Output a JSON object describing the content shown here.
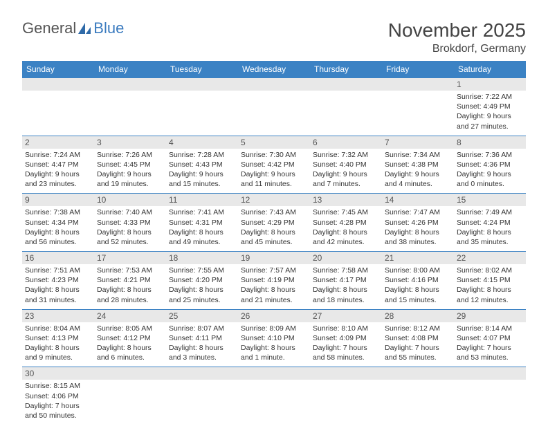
{
  "logo": {
    "part1": "General",
    "part2": "Blue"
  },
  "title": "November 2025",
  "location": "Brokdorf, Germany",
  "colors": {
    "header_bg": "#3b82c4",
    "header_fg": "#ffffff",
    "daynum_bg": "#e8e8e8",
    "week_border": "#3b82c4",
    "text": "#333333",
    "logo_gray": "#555555",
    "logo_blue": "#3b7bbf"
  },
  "weekdays": [
    "Sunday",
    "Monday",
    "Tuesday",
    "Wednesday",
    "Thursday",
    "Friday",
    "Saturday"
  ],
  "weeks": [
    [
      null,
      null,
      null,
      null,
      null,
      null,
      {
        "n": "1",
        "sr": "Sunrise: 7:22 AM",
        "ss": "Sunset: 4:49 PM",
        "d1": "Daylight: 9 hours",
        "d2": "and 27 minutes."
      }
    ],
    [
      {
        "n": "2",
        "sr": "Sunrise: 7:24 AM",
        "ss": "Sunset: 4:47 PM",
        "d1": "Daylight: 9 hours",
        "d2": "and 23 minutes."
      },
      {
        "n": "3",
        "sr": "Sunrise: 7:26 AM",
        "ss": "Sunset: 4:45 PM",
        "d1": "Daylight: 9 hours",
        "d2": "and 19 minutes."
      },
      {
        "n": "4",
        "sr": "Sunrise: 7:28 AM",
        "ss": "Sunset: 4:43 PM",
        "d1": "Daylight: 9 hours",
        "d2": "and 15 minutes."
      },
      {
        "n": "5",
        "sr": "Sunrise: 7:30 AM",
        "ss": "Sunset: 4:42 PM",
        "d1": "Daylight: 9 hours",
        "d2": "and 11 minutes."
      },
      {
        "n": "6",
        "sr": "Sunrise: 7:32 AM",
        "ss": "Sunset: 4:40 PM",
        "d1": "Daylight: 9 hours",
        "d2": "and 7 minutes."
      },
      {
        "n": "7",
        "sr": "Sunrise: 7:34 AM",
        "ss": "Sunset: 4:38 PM",
        "d1": "Daylight: 9 hours",
        "d2": "and 4 minutes."
      },
      {
        "n": "8",
        "sr": "Sunrise: 7:36 AM",
        "ss": "Sunset: 4:36 PM",
        "d1": "Daylight: 9 hours",
        "d2": "and 0 minutes."
      }
    ],
    [
      {
        "n": "9",
        "sr": "Sunrise: 7:38 AM",
        "ss": "Sunset: 4:34 PM",
        "d1": "Daylight: 8 hours",
        "d2": "and 56 minutes."
      },
      {
        "n": "10",
        "sr": "Sunrise: 7:40 AM",
        "ss": "Sunset: 4:33 PM",
        "d1": "Daylight: 8 hours",
        "d2": "and 52 minutes."
      },
      {
        "n": "11",
        "sr": "Sunrise: 7:41 AM",
        "ss": "Sunset: 4:31 PM",
        "d1": "Daylight: 8 hours",
        "d2": "and 49 minutes."
      },
      {
        "n": "12",
        "sr": "Sunrise: 7:43 AM",
        "ss": "Sunset: 4:29 PM",
        "d1": "Daylight: 8 hours",
        "d2": "and 45 minutes."
      },
      {
        "n": "13",
        "sr": "Sunrise: 7:45 AM",
        "ss": "Sunset: 4:28 PM",
        "d1": "Daylight: 8 hours",
        "d2": "and 42 minutes."
      },
      {
        "n": "14",
        "sr": "Sunrise: 7:47 AM",
        "ss": "Sunset: 4:26 PM",
        "d1": "Daylight: 8 hours",
        "d2": "and 38 minutes."
      },
      {
        "n": "15",
        "sr": "Sunrise: 7:49 AM",
        "ss": "Sunset: 4:24 PM",
        "d1": "Daylight: 8 hours",
        "d2": "and 35 minutes."
      }
    ],
    [
      {
        "n": "16",
        "sr": "Sunrise: 7:51 AM",
        "ss": "Sunset: 4:23 PM",
        "d1": "Daylight: 8 hours",
        "d2": "and 31 minutes."
      },
      {
        "n": "17",
        "sr": "Sunrise: 7:53 AM",
        "ss": "Sunset: 4:21 PM",
        "d1": "Daylight: 8 hours",
        "d2": "and 28 minutes."
      },
      {
        "n": "18",
        "sr": "Sunrise: 7:55 AM",
        "ss": "Sunset: 4:20 PM",
        "d1": "Daylight: 8 hours",
        "d2": "and 25 minutes."
      },
      {
        "n": "19",
        "sr": "Sunrise: 7:57 AM",
        "ss": "Sunset: 4:19 PM",
        "d1": "Daylight: 8 hours",
        "d2": "and 21 minutes."
      },
      {
        "n": "20",
        "sr": "Sunrise: 7:58 AM",
        "ss": "Sunset: 4:17 PM",
        "d1": "Daylight: 8 hours",
        "d2": "and 18 minutes."
      },
      {
        "n": "21",
        "sr": "Sunrise: 8:00 AM",
        "ss": "Sunset: 4:16 PM",
        "d1": "Daylight: 8 hours",
        "d2": "and 15 minutes."
      },
      {
        "n": "22",
        "sr": "Sunrise: 8:02 AM",
        "ss": "Sunset: 4:15 PM",
        "d1": "Daylight: 8 hours",
        "d2": "and 12 minutes."
      }
    ],
    [
      {
        "n": "23",
        "sr": "Sunrise: 8:04 AM",
        "ss": "Sunset: 4:13 PM",
        "d1": "Daylight: 8 hours",
        "d2": "and 9 minutes."
      },
      {
        "n": "24",
        "sr": "Sunrise: 8:05 AM",
        "ss": "Sunset: 4:12 PM",
        "d1": "Daylight: 8 hours",
        "d2": "and 6 minutes."
      },
      {
        "n": "25",
        "sr": "Sunrise: 8:07 AM",
        "ss": "Sunset: 4:11 PM",
        "d1": "Daylight: 8 hours",
        "d2": "and 3 minutes."
      },
      {
        "n": "26",
        "sr": "Sunrise: 8:09 AM",
        "ss": "Sunset: 4:10 PM",
        "d1": "Daylight: 8 hours",
        "d2": "and 1 minute."
      },
      {
        "n": "27",
        "sr": "Sunrise: 8:10 AM",
        "ss": "Sunset: 4:09 PM",
        "d1": "Daylight: 7 hours",
        "d2": "and 58 minutes."
      },
      {
        "n": "28",
        "sr": "Sunrise: 8:12 AM",
        "ss": "Sunset: 4:08 PM",
        "d1": "Daylight: 7 hours",
        "d2": "and 55 minutes."
      },
      {
        "n": "29",
        "sr": "Sunrise: 8:14 AM",
        "ss": "Sunset: 4:07 PM",
        "d1": "Daylight: 7 hours",
        "d2": "and 53 minutes."
      }
    ],
    [
      {
        "n": "30",
        "sr": "Sunrise: 8:15 AM",
        "ss": "Sunset: 4:06 PM",
        "d1": "Daylight: 7 hours",
        "d2": "and 50 minutes."
      },
      null,
      null,
      null,
      null,
      null,
      null
    ]
  ]
}
